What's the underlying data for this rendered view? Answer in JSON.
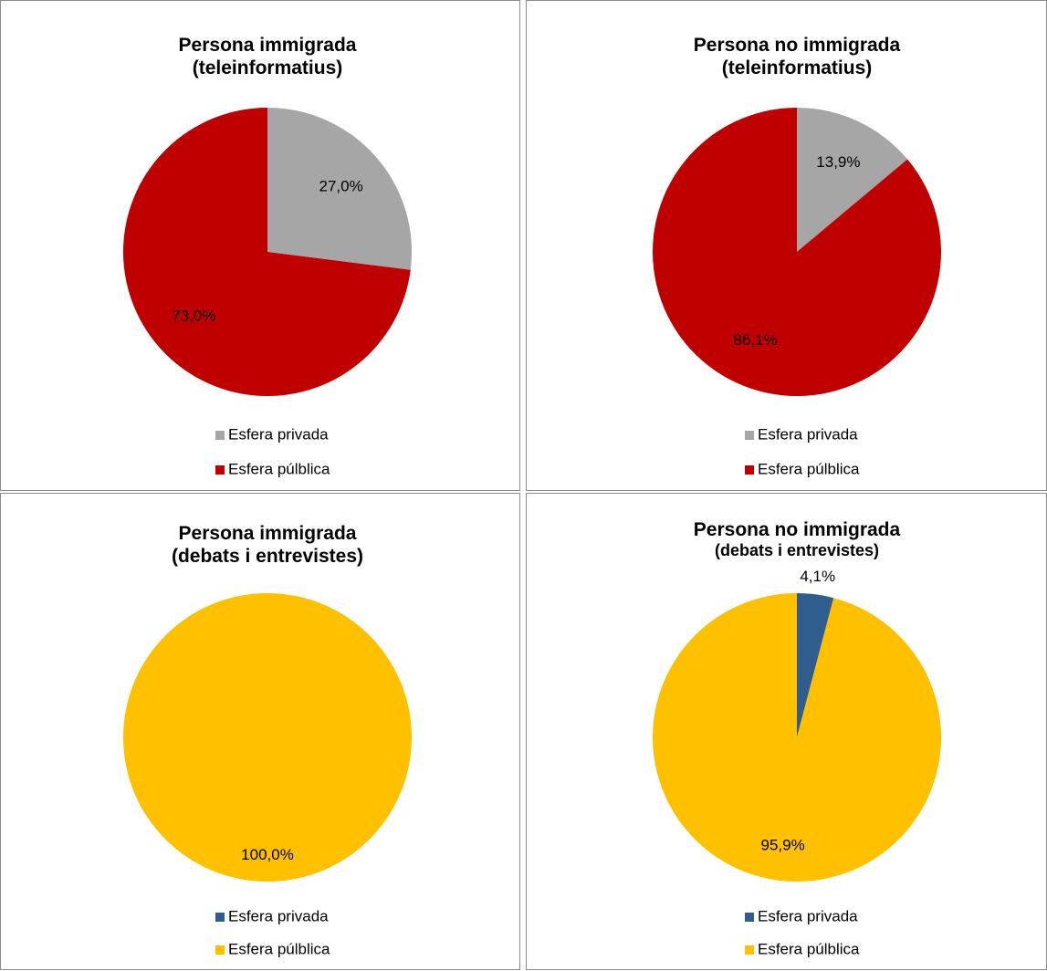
{
  "chart_data": [
    {
      "type": "pie",
      "title_lines": [
        "Persona immigrada",
        "(teleinformatius)"
      ],
      "slices": [
        {
          "name": "Esfera privada",
          "value": 27.0,
          "label": "27,0%",
          "color": "#a6a6a6"
        },
        {
          "name": "Esfera púlblica",
          "value": 73.0,
          "label": "73,0%",
          "color": "#c00000"
        }
      ],
      "legend_position": "bottom"
    },
    {
      "type": "pie",
      "title_lines": [
        "Persona no immigrada",
        "(teleinformatius)"
      ],
      "slices": [
        {
          "name": "Esfera privada",
          "value": 13.9,
          "label": "13,9%",
          "color": "#a6a6a6"
        },
        {
          "name": "Esfera púlblica",
          "value": 86.1,
          "label": "86,1%",
          "color": "#c00000"
        }
      ],
      "legend_position": "bottom"
    },
    {
      "type": "pie",
      "title_lines": [
        "Persona immigrada",
        "(debats i entrevistes)"
      ],
      "slices": [
        {
          "name": "Esfera privada",
          "value": 0.0,
          "label": "",
          "color": "#2f5d8e"
        },
        {
          "name": "Esfera púlblica",
          "value": 100.0,
          "label": "100,0%",
          "color": "#ffc000"
        }
      ],
      "legend_position": "bottom"
    },
    {
      "type": "pie",
      "title_lines": [
        "Persona no immigrada",
        "(debats i entrevistes)"
      ],
      "slices": [
        {
          "name": "Esfera privada",
          "value": 4.1,
          "label": "4,1%",
          "color": "#2f5d8e"
        },
        {
          "name": "Esfera púlblica",
          "value": 95.9,
          "label": "95,9%",
          "color": "#ffc000"
        }
      ],
      "legend_position": "bottom"
    }
  ]
}
